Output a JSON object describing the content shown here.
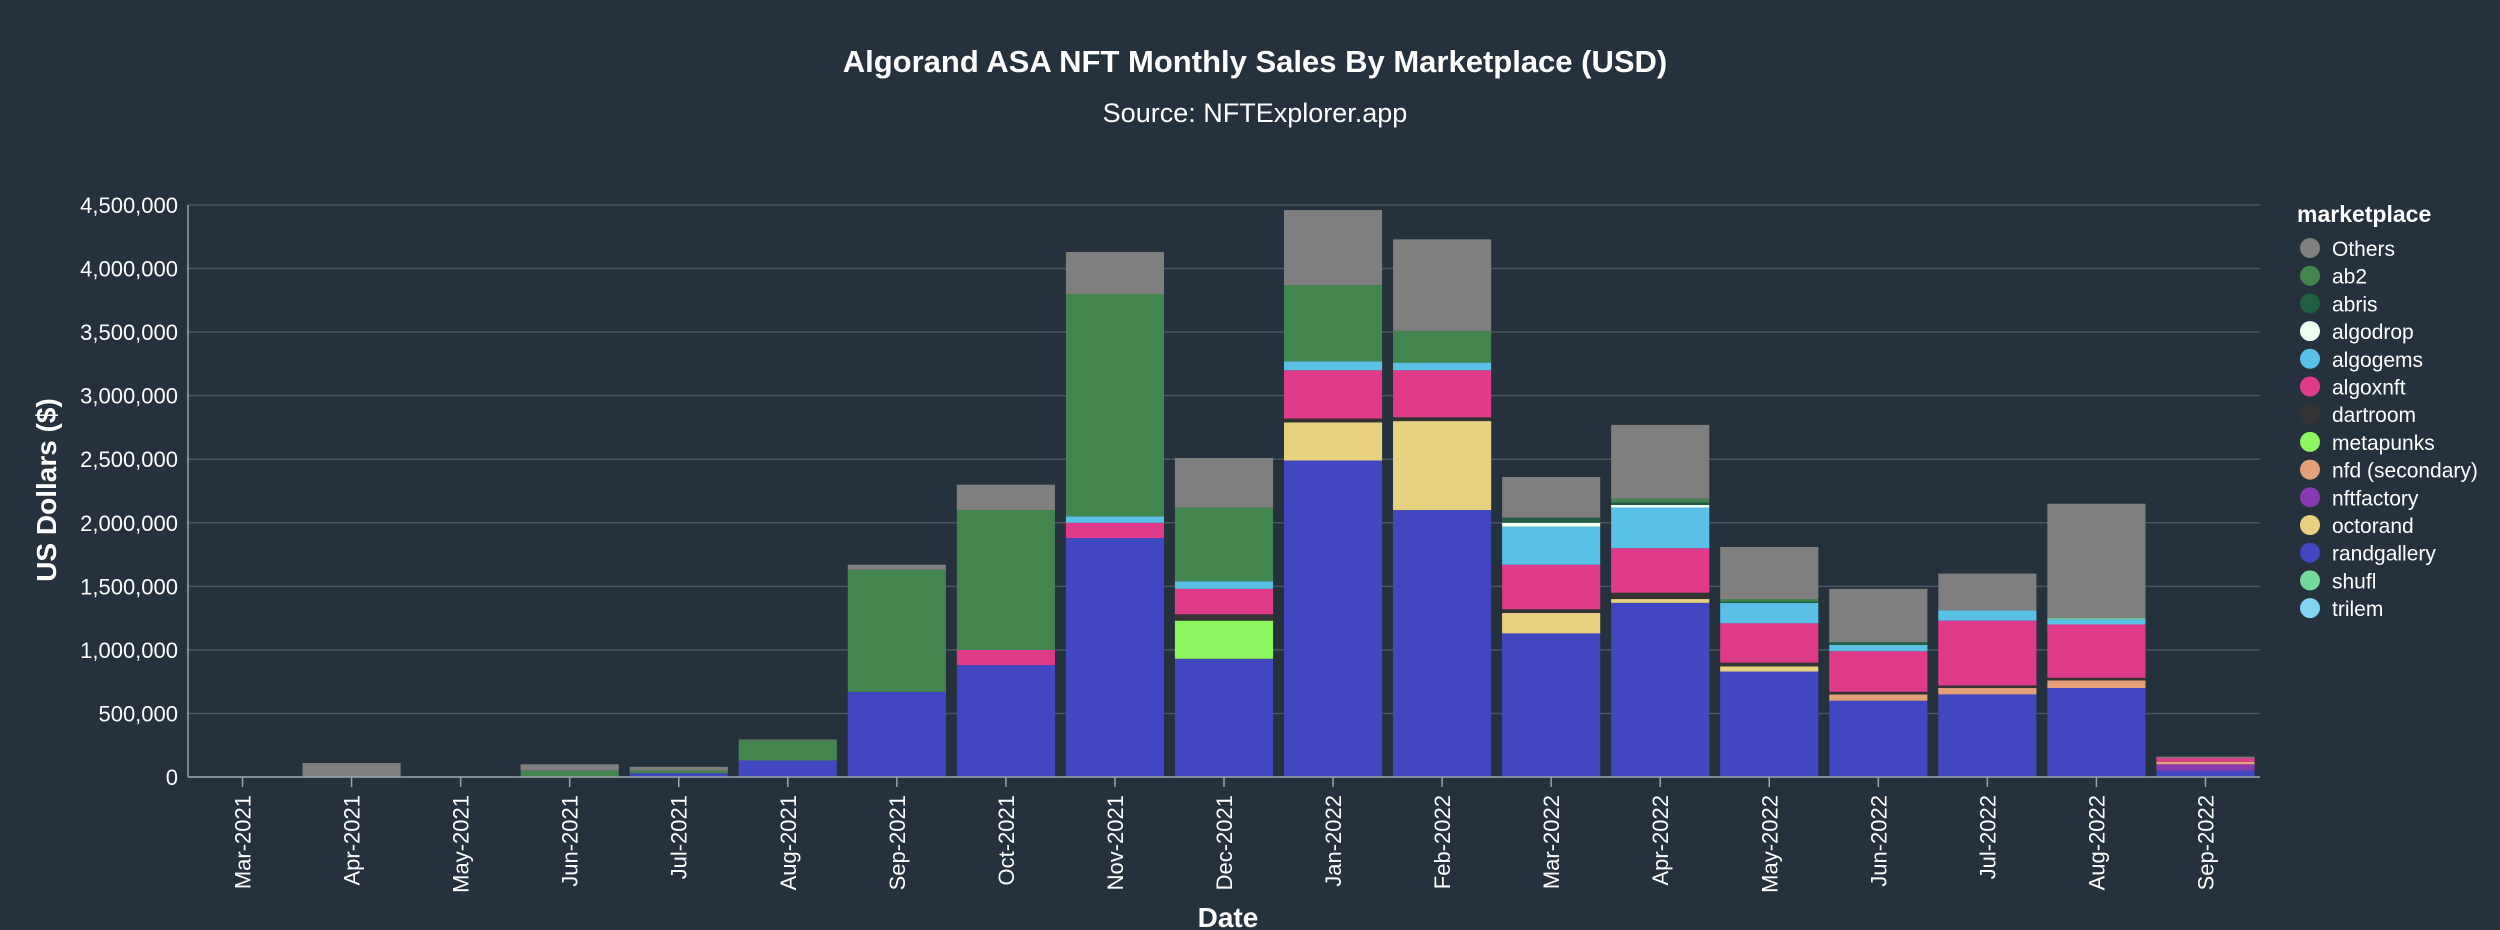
{
  "chart_data": {
    "type": "bar",
    "stacked": true,
    "title": "Algorand ASA NFT Monthly Sales By Marketplace (USD)",
    "subtitle": "Source: NFTExplorer.app",
    "xlabel": "Date",
    "ylabel": "US Dollars ($)",
    "ylim": [
      0,
      4500000
    ],
    "yticks": [
      0,
      500000,
      1000000,
      1500000,
      2000000,
      2500000,
      3000000,
      3500000,
      4000000,
      4500000
    ],
    "ytick_labels": [
      "0",
      "500,000",
      "1,000,000",
      "1,500,000",
      "2,000,000",
      "2,500,000",
      "3,000,000",
      "3,500,000",
      "4,000,000",
      "4,500,000"
    ],
    "grid": true,
    "legend_title": "marketplace",
    "legend_position": "right",
    "categories": [
      "Mar-2021",
      "Apr-2021",
      "May-2021",
      "Jun-2021",
      "Jul-2021",
      "Aug-2021",
      "Sep-2021",
      "Oct-2021",
      "Nov-2021",
      "Dec-2021",
      "Jan-2022",
      "Feb-2022",
      "Mar-2022",
      "Apr-2022",
      "May-2022",
      "Jun-2022",
      "Jul-2022",
      "Aug-2022",
      "Sep-2022"
    ],
    "stack_order": [
      "randgallery",
      "nftfactory",
      "nfd (secondary)",
      "octorand",
      "metapunks",
      "dartroom",
      "algoxnft",
      "algogems",
      "algodrop",
      "abris",
      "ab2",
      "shufl",
      "trilem",
      "Others"
    ],
    "series": [
      {
        "name": "Others",
        "color": "#7f7f7f",
        "values": [
          5000,
          110000,
          5000,
          50000,
          30000,
          5000,
          40000,
          200000,
          330000,
          390000,
          590000,
          720000,
          320000,
          580000,
          410000,
          420000,
          290000,
          900000,
          10000
        ]
      },
      {
        "name": "ab2",
        "color": "#43854f",
        "values": [
          0,
          0,
          0,
          50000,
          20000,
          160000,
          960000,
          1100000,
          1750000,
          580000,
          600000,
          250000,
          0,
          30000,
          20000,
          0,
          0,
          0,
          0
        ]
      },
      {
        "name": "abris",
        "color": "#215f43",
        "values": [
          0,
          0,
          0,
          0,
          0,
          0,
          0,
          0,
          0,
          0,
          0,
          0,
          40000,
          20000,
          10000,
          20000,
          0,
          0,
          0
        ]
      },
      {
        "name": "algodrop",
        "color": "#f0fff0",
        "values": [
          0,
          0,
          0,
          0,
          0,
          0,
          0,
          0,
          0,
          0,
          0,
          0,
          30000,
          20000,
          0,
          0,
          0,
          0,
          0
        ]
      },
      {
        "name": "algogems",
        "color": "#5bc0e6",
        "values": [
          0,
          0,
          0,
          0,
          0,
          0,
          0,
          0,
          50000,
          60000,
          70000,
          60000,
          300000,
          320000,
          160000,
          50000,
          80000,
          40000,
          0
        ]
      },
      {
        "name": "algoxnft",
        "color": "#e03b8b",
        "values": [
          0,
          0,
          0,
          0,
          0,
          0,
          0,
          120000,
          120000,
          200000,
          380000,
          370000,
          350000,
          350000,
          310000,
          320000,
          510000,
          420000,
          30000
        ]
      },
      {
        "name": "dartroom",
        "color": "#333333",
        "values": [
          0,
          0,
          0,
          0,
          0,
          0,
          0,
          0,
          0,
          50000,
          30000,
          30000,
          30000,
          50000,
          30000,
          20000,
          20000,
          20000,
          0
        ]
      },
      {
        "name": "metapunks",
        "color": "#8df55d",
        "values": [
          0,
          0,
          0,
          0,
          0,
          0,
          0,
          0,
          0,
          300000,
          0,
          0,
          0,
          0,
          0,
          0,
          0,
          0,
          0
        ]
      },
      {
        "name": "nfd (secondary)",
        "color": "#e3a07a",
        "values": [
          0,
          0,
          0,
          0,
          0,
          0,
          0,
          0,
          0,
          0,
          0,
          0,
          0,
          0,
          0,
          50000,
          50000,
          60000,
          20000
        ]
      },
      {
        "name": "nftfactory",
        "color": "#8a3ab0",
        "values": [
          0,
          0,
          0,
          0,
          0,
          0,
          0,
          0,
          0,
          0,
          0,
          0,
          0,
          0,
          0,
          0,
          0,
          0,
          50000
        ]
      },
      {
        "name": "octorand",
        "color": "#e8d17e",
        "values": [
          0,
          0,
          0,
          0,
          0,
          0,
          0,
          0,
          0,
          0,
          300000,
          700000,
          160000,
          30000,
          40000,
          0,
          0,
          0,
          0
        ]
      },
      {
        "name": "randgallery",
        "color": "#4147c1",
        "values": [
          0,
          0,
          0,
          0,
          30000,
          130000,
          670000,
          880000,
          1880000,
          930000,
          2490000,
          2100000,
          1130000,
          1370000,
          830000,
          600000,
          650000,
          700000,
          50000
        ]
      },
      {
        "name": "shufl",
        "color": "#76d89b",
        "values": [
          0,
          0,
          0,
          0,
          0,
          0,
          0,
          0,
          0,
          0,
          0,
          0,
          0,
          0,
          0,
          0,
          0,
          10000,
          0
        ]
      },
      {
        "name": "trilem",
        "color": "#80d4f0",
        "values": [
          0,
          0,
          0,
          0,
          0,
          0,
          0,
          0,
          0,
          0,
          0,
          0,
          0,
          0,
          0,
          0,
          0,
          0,
          0
        ]
      }
    ]
  }
}
